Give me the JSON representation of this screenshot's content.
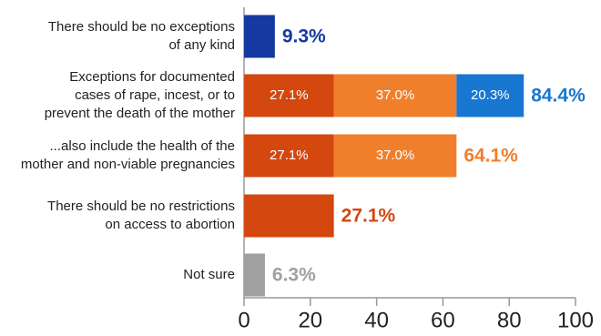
{
  "chart_data": {
    "type": "stacked-bar-horizontal",
    "categories": [
      [
        "There should be no exceptions",
        "of any kind"
      ],
      [
        "Exceptions for documented",
        "cases of rape, incest, or to",
        "prevent the death of the mother"
      ],
      [
        "...also include the health of the",
        "mother and non-viable pregnancies"
      ],
      [
        "There should be no restrictions",
        "on access to abortion"
      ],
      [
        "Not sure"
      ]
    ],
    "series": [
      {
        "color": "#1539a0",
        "values": [
          9.3,
          null,
          null,
          null,
          null
        ]
      },
      {
        "color": "#d4470f",
        "values": [
          null,
          27.1,
          27.1,
          27.1,
          null
        ],
        "value_labels": [
          null,
          "27.1%",
          "27.1%",
          null,
          null
        ]
      },
      {
        "color": "#f07f2b",
        "values": [
          null,
          37.0,
          37.0,
          null,
          null
        ],
        "value_labels": [
          null,
          "37.0%",
          "37.0%",
          null,
          null
        ]
      },
      {
        "color": "#1877d0",
        "values": [
          null,
          20.3,
          null,
          null,
          null
        ],
        "value_labels": [
          null,
          "20.3%",
          null,
          null,
          null
        ]
      },
      {
        "color": "#a0a0a0",
        "values": [
          null,
          null,
          null,
          null,
          6.3
        ]
      }
    ],
    "totals": [
      9.3,
      84.4,
      64.1,
      27.1,
      6.3
    ],
    "total_labels": [
      "9.3%",
      "84.4%",
      "64.1%",
      "27.1%",
      "6.3%"
    ],
    "total_colors": [
      "#1539a0",
      "#1877d0",
      "#f07f2b",
      "#d4470f",
      "#a0a0a0"
    ],
    "xlim": [
      0,
      100
    ],
    "xticks": [
      0,
      20,
      40,
      60,
      80,
      100
    ]
  }
}
